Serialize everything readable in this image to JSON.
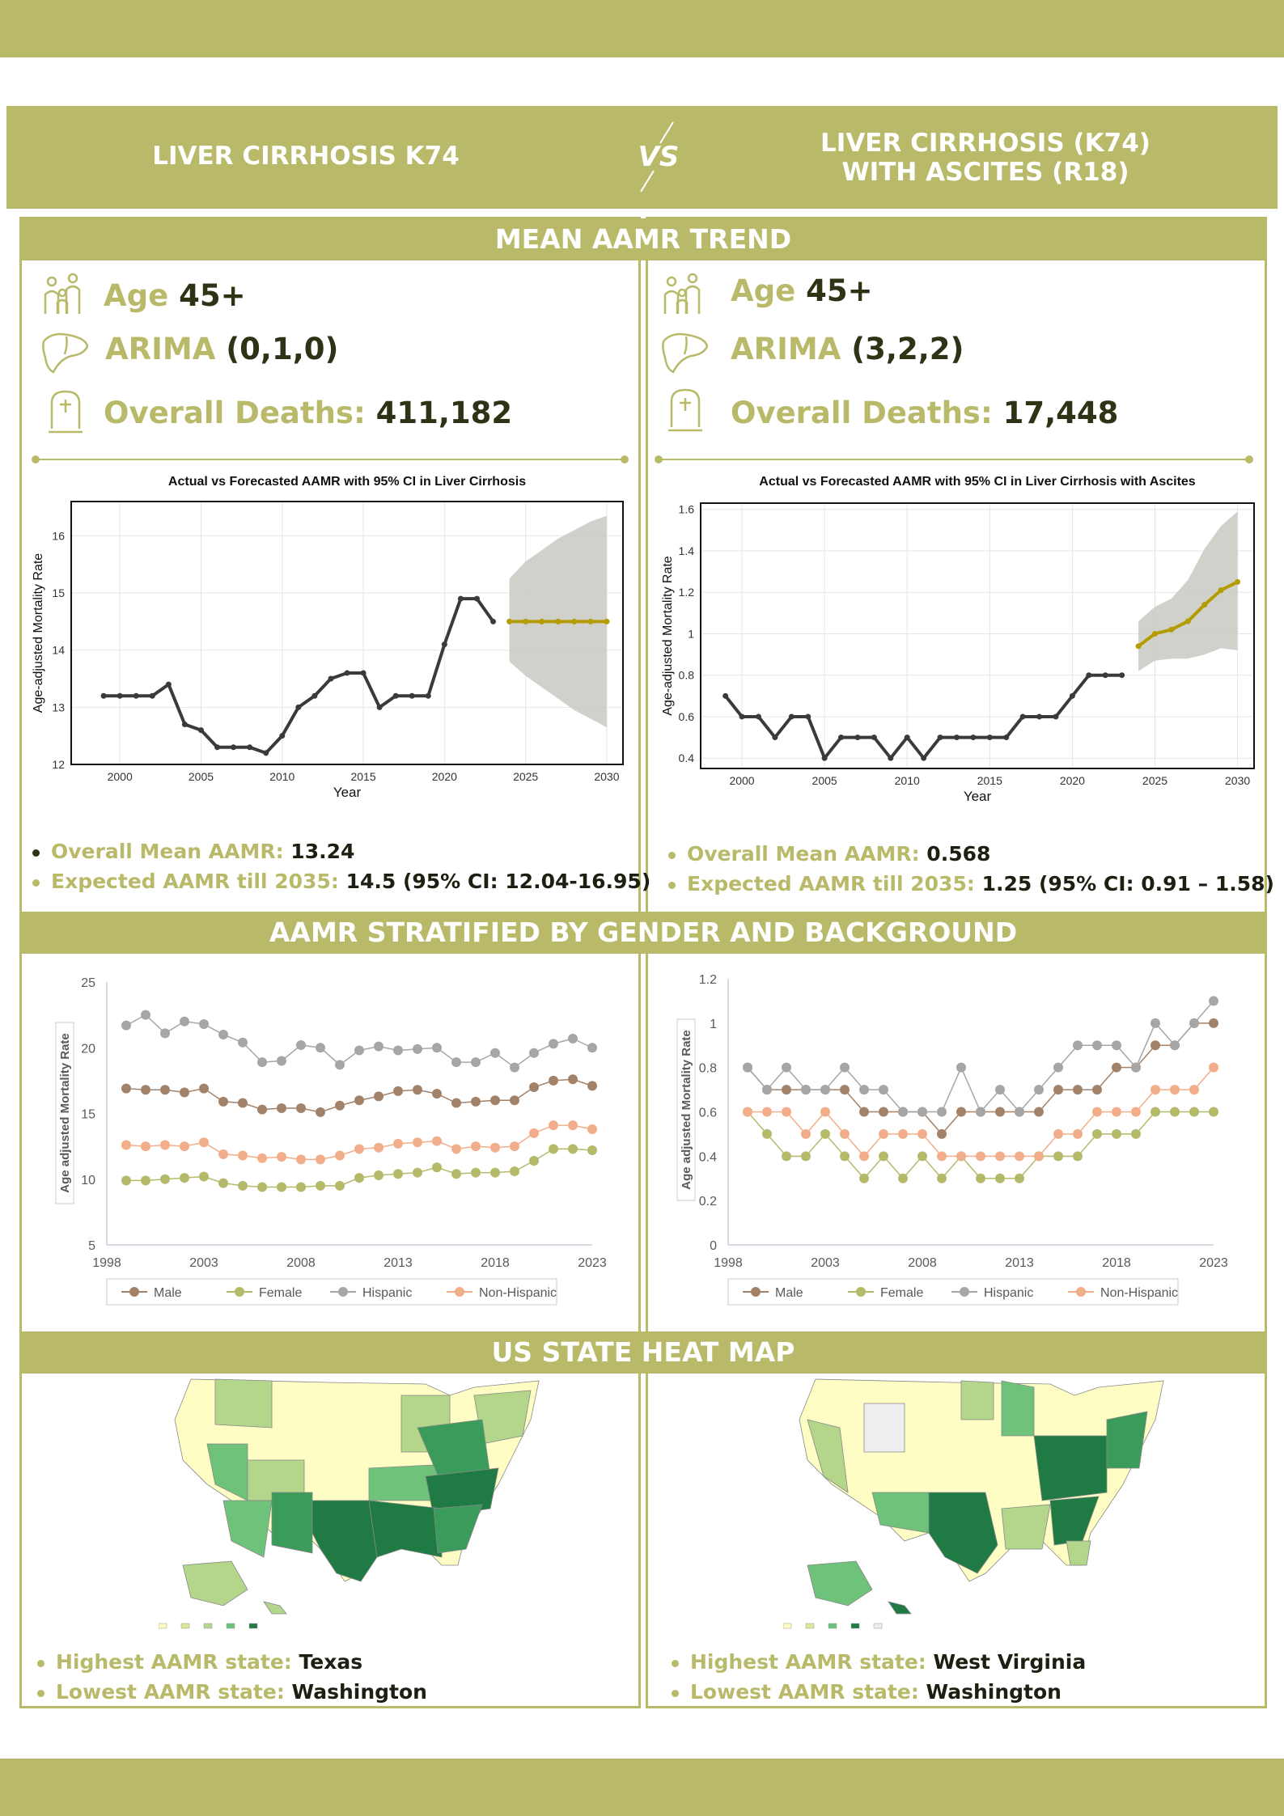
{
  "title": {
    "left": "LIVER CIRRHOSIS K74",
    "vs": "VS",
    "right_line1": "LIVER CIRRHOSIS (K74)",
    "right_line2": "WITH ASCITES (R18)"
  },
  "sections": {
    "trend": "MEAN AAMR TREND",
    "stratified": "AAMR STRATIFIED BY GENDER AND BACKGROUND",
    "heatmap": "US STATE HEAT MAP"
  },
  "left": {
    "age_label": "Age",
    "age_value": "45+",
    "arima_label": "ARIMA",
    "arima_value": "(0,1,0)",
    "deaths_label": "Overall Deaths:",
    "deaths_value": "411,182",
    "mean_label": "Overall Mean AAMR:",
    "mean_value": "13.24",
    "expected_label": "Expected AAMR till 2035:",
    "expected_value": "14.5 (95% CI: 12.04-16.95)",
    "highest_label": "Highest AAMR state:",
    "highest_value": "Texas",
    "lowest_label": "Lowest AAMR state:",
    "lowest_value": "Washington"
  },
  "right": {
    "age_label": "Age",
    "age_value": "45+",
    "arima_label": "ARIMA",
    "arima_value": "(3,2,2)",
    "deaths_label": "Overall Deaths:",
    "deaths_value": "17,448",
    "mean_label": "Overall Mean AAMR:",
    "mean_value": "0.568",
    "expected_label": "Expected AAMR till 2035:",
    "expected_value": "1.25 (95% CI: 0.91 – 1.58)",
    "highest_label": "Highest AAMR state:",
    "highest_value": "West Virginia",
    "lowest_label": "Lowest AAMR state:",
    "lowest_value": "Washington"
  },
  "colors": {
    "accent": "#b9b96a",
    "dark_text": "#2f3316",
    "actual_line": "#3a3a3a",
    "forecast_line": "#b39b00",
    "ci_band": "#c9c9c3",
    "male": "#a3826a",
    "female": "#b5ba6a",
    "hispanic": "#a6a6a6",
    "non_hispanic": "#f2ad8a"
  },
  "icons": {
    "age": "family-icon",
    "arima": "liver-icon",
    "deaths": "tombstone-icon"
  },
  "chart_data": [
    {
      "id": "forecast_left",
      "type": "line",
      "title": "Actual vs Forecasted AAMR with 95% CI in Liver Cirrhosis",
      "xlabel": "Year",
      "ylabel": "Age-adjusted Mortality Rate",
      "xlim": [
        1997,
        2031
      ],
      "ylim": [
        12,
        16.6
      ],
      "xticks": [
        2000,
        2005,
        2010,
        2015,
        2020,
        2025,
        2030
      ],
      "yticks": [
        12,
        13,
        14,
        15,
        16
      ],
      "grid": true,
      "actual": {
        "x": [
          1999,
          2000,
          2001,
          2002,
          2003,
          2004,
          2005,
          2006,
          2007,
          2008,
          2009,
          2010,
          2011,
          2012,
          2013,
          2014,
          2015,
          2016,
          2017,
          2018,
          2019,
          2020,
          2021,
          2022,
          2023
        ],
        "y": [
          13.2,
          13.2,
          13.2,
          13.2,
          13.4,
          12.7,
          12.6,
          12.3,
          12.3,
          12.3,
          12.2,
          12.5,
          13.0,
          13.2,
          13.5,
          13.6,
          13.6,
          13.0,
          13.2,
          13.2,
          13.2,
          14.1,
          14.9,
          14.9,
          14.5
        ]
      },
      "forecast": {
        "x": [
          2024,
          2025,
          2026,
          2027,
          2028,
          2029,
          2030
        ],
        "y": [
          14.5,
          14.5,
          14.5,
          14.5,
          14.5,
          14.5,
          14.5
        ],
        "lower": [
          13.8,
          13.55,
          13.35,
          13.15,
          12.95,
          12.8,
          12.65
        ],
        "upper": [
          15.25,
          15.55,
          15.75,
          15.95,
          16.1,
          16.25,
          16.35
        ]
      }
    },
    {
      "id": "forecast_right",
      "type": "line",
      "title": "Actual vs Forecasted AAMR with 95% CI in Liver Cirrhosis with Ascites",
      "xlabel": "Year",
      "ylabel": "Age-adjusted Mortality Rate",
      "xlim": [
        1997.5,
        2031
      ],
      "ylim": [
        0.35,
        1.63
      ],
      "xticks": [
        2000,
        2005,
        2010,
        2015,
        2020,
        2025,
        2030
      ],
      "yticks": [
        0.4,
        0.6,
        0.8,
        1.0,
        1.2,
        1.4,
        1.6
      ],
      "grid": true,
      "actual": {
        "x": [
          1999,
          2000,
          2001,
          2002,
          2003,
          2004,
          2005,
          2006,
          2007,
          2008,
          2009,
          2010,
          2011,
          2012,
          2013,
          2014,
          2015,
          2016,
          2017,
          2018,
          2019,
          2020,
          2021,
          2022,
          2023
        ],
        "y": [
          0.7,
          0.6,
          0.6,
          0.5,
          0.6,
          0.6,
          0.4,
          0.5,
          0.5,
          0.5,
          0.4,
          0.5,
          0.4,
          0.5,
          0.5,
          0.5,
          0.5,
          0.5,
          0.6,
          0.6,
          0.6,
          0.7,
          0.8,
          0.8,
          0.8
        ]
      },
      "forecast": {
        "x": [
          2024,
          2025,
          2026,
          2027,
          2028,
          2029,
          2030
        ],
        "y": [
          0.94,
          1.0,
          1.02,
          1.06,
          1.14,
          1.21,
          1.25
        ],
        "lower": [
          0.82,
          0.87,
          0.88,
          0.88,
          0.9,
          0.93,
          0.92
        ],
        "upper": [
          1.06,
          1.13,
          1.17,
          1.26,
          1.41,
          1.52,
          1.59
        ]
      }
    },
    {
      "id": "stratified_left",
      "type": "line",
      "ylabel": "Age adjusted Mortality Rate",
      "xlim": [
        1998,
        2023
      ],
      "ylim": [
        5,
        25
      ],
      "xticks": [
        1998,
        2003,
        2008,
        2013,
        2018,
        2023
      ],
      "yticks": [
        5,
        10,
        15,
        20,
        25
      ],
      "legend": "bottom",
      "x": [
        1999,
        2000,
        2001,
        2002,
        2003,
        2004,
        2005,
        2006,
        2007,
        2008,
        2009,
        2010,
        2011,
        2012,
        2013,
        2014,
        2015,
        2016,
        2017,
        2018,
        2019,
        2020,
        2021,
        2022,
        2023
      ],
      "series": [
        {
          "name": "Male",
          "values": [
            16.9,
            16.8,
            16.8,
            16.6,
            16.9,
            15.9,
            15.8,
            15.3,
            15.4,
            15.4,
            15.1,
            15.6,
            16.0,
            16.3,
            16.7,
            16.8,
            16.5,
            15.8,
            15.9,
            16.0,
            16.0,
            17.0,
            17.5,
            17.6,
            17.1
          ]
        },
        {
          "name": "Female",
          "values": [
            9.9,
            9.9,
            10.0,
            10.1,
            10.2,
            9.7,
            9.5,
            9.4,
            9.4,
            9.4,
            9.5,
            9.5,
            10.1,
            10.3,
            10.4,
            10.5,
            10.9,
            10.4,
            10.5,
            10.5,
            10.6,
            11.4,
            12.3,
            12.3,
            12.2
          ]
        },
        {
          "name": "Hispanic",
          "values": [
            21.7,
            22.5,
            21.1,
            22.0,
            21.8,
            21.0,
            20.4,
            18.9,
            19.0,
            20.2,
            20.0,
            18.7,
            19.8,
            20.1,
            19.8,
            19.9,
            20.0,
            18.9,
            18.9,
            19.6,
            18.5,
            19.6,
            20.3,
            20.7,
            20.0
          ]
        },
        {
          "name": "Non-Hispanic",
          "values": [
            12.6,
            12.5,
            12.6,
            12.5,
            12.8,
            11.9,
            11.8,
            11.6,
            11.7,
            11.5,
            11.5,
            11.8,
            12.3,
            12.4,
            12.7,
            12.8,
            12.9,
            12.3,
            12.5,
            12.4,
            12.5,
            13.5,
            14.1,
            14.1,
            13.8
          ]
        }
      ]
    },
    {
      "id": "stratified_right",
      "type": "line",
      "ylabel": "Age adjusted Mortality Rate",
      "xlim": [
        1998,
        2023
      ],
      "ylim": [
        0,
        1.2
      ],
      "xticks": [
        1998,
        2003,
        2008,
        2013,
        2018,
        2023
      ],
      "yticks": [
        0,
        0.2,
        0.4,
        0.6,
        0.8,
        1,
        1.2
      ],
      "legend": "bottom",
      "x": [
        1999,
        2000,
        2001,
        2002,
        2003,
        2004,
        2005,
        2006,
        2007,
        2008,
        2009,
        2010,
        2011,
        2012,
        2013,
        2014,
        2015,
        2016,
        2017,
        2018,
        2019,
        2020,
        2021,
        2022,
        2023
      ],
      "series": [
        {
          "name": "Male",
          "values": [
            0.8,
            0.7,
            0.7,
            0.7,
            0.7,
            0.7,
            0.6,
            0.6,
            0.6,
            0.6,
            0.5,
            0.6,
            0.6,
            0.6,
            0.6,
            0.6,
            0.7,
            0.7,
            0.7,
            0.8,
            0.8,
            0.9,
            0.9,
            1.0,
            1.0
          ]
        },
        {
          "name": "Female",
          "values": [
            0.6,
            0.5,
            0.4,
            0.4,
            0.5,
            0.4,
            0.3,
            0.4,
            0.3,
            0.4,
            0.3,
            0.4,
            0.3,
            0.3,
            0.3,
            0.4,
            0.4,
            0.4,
            0.5,
            0.5,
            0.5,
            0.6,
            0.6,
            0.6,
            0.6
          ]
        },
        {
          "name": "Hispanic",
          "values": [
            0.8,
            0.7,
            0.8,
            0.7,
            0.7,
            0.8,
            0.7,
            0.7,
            0.6,
            0.6,
            0.6,
            0.8,
            0.6,
            0.7,
            0.6,
            0.7,
            0.8,
            0.9,
            0.9,
            0.9,
            0.8,
            1.0,
            0.9,
            1.0,
            1.1
          ]
        },
        {
          "name": "Non-Hispanic",
          "values": [
            0.6,
            0.6,
            0.6,
            0.5,
            0.6,
            0.5,
            0.4,
            0.5,
            0.5,
            0.5,
            0.4,
            0.4,
            0.4,
            0.4,
            0.4,
            0.4,
            0.5,
            0.5,
            0.6,
            0.6,
            0.6,
            0.7,
            0.7,
            0.7,
            0.8
          ]
        }
      ]
    }
  ]
}
